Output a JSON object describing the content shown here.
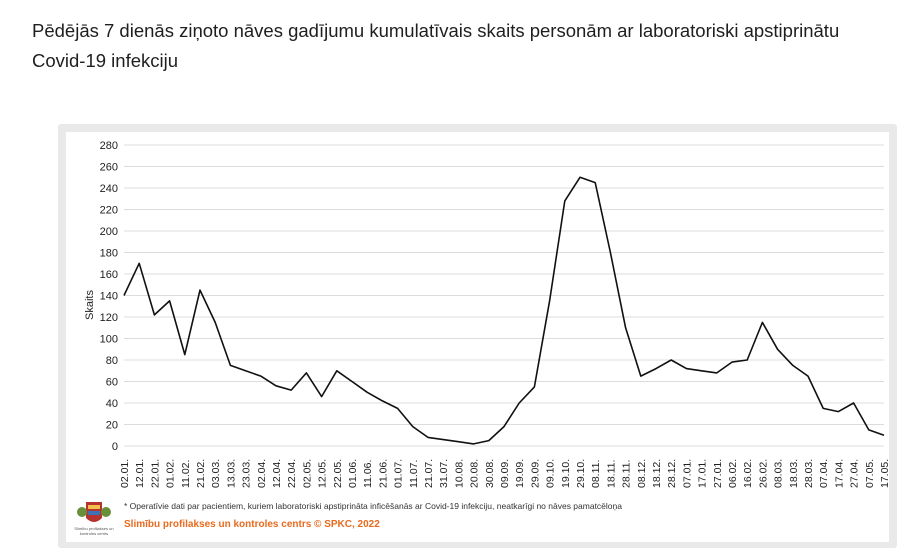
{
  "title": "Pēdējās 7 dienās ziņoto nāves gadījumu kumulatīvais skaits personām ar laboratoriski apstiprinātu Covid-19 infekciju",
  "footnote": "* Operatīvie dati par pacientiem, kuriem laboratoriski apstiprināta inficēšanās ar Covid-19 infekciju, neatkarīgi no nāves pamatcēloņa",
  "organization": "Slimību profilakses un kontroles centrs © SPKC, 2022",
  "logo_text": "Slimību profilakses un kontroles centrs",
  "colors": {
    "line": "#111111",
    "grid": "#dcdcdc",
    "accent": "#e86a1e",
    "frame": "#e9e9e9"
  },
  "chart_data": {
    "type": "line",
    "ylabel": "Skaits",
    "xlabel": "",
    "ylim": [
      0,
      280
    ],
    "yticks": [
      0,
      20,
      40,
      60,
      80,
      100,
      120,
      140,
      160,
      180,
      200,
      220,
      240,
      260,
      280
    ],
    "grid": true,
    "categories": [
      "02.01.",
      "12.01.",
      "22.01.",
      "01.02.",
      "11.02.",
      "21.02.",
      "03.03.",
      "13.03.",
      "23.03.",
      "02.04.",
      "12.04.",
      "22.04.",
      "02.05.",
      "12.05.",
      "22.05.",
      "01.06.",
      "11.06.",
      "21.06.",
      "01.07.",
      "11.07.",
      "21.07.",
      "31.07.",
      "10.08.",
      "20.08.",
      "30.08.",
      "09.09.",
      "19.09.",
      "29.09.",
      "09.10.",
      "19.10.",
      "29.10.",
      "08.11.",
      "18.11.",
      "28.11.",
      "08.12.",
      "18.12.",
      "28.12.",
      "07.01.",
      "17.01.",
      "27.01.",
      "06.02.",
      "16.02.",
      "26.02.",
      "08.03.",
      "18.03.",
      "28.03.",
      "07.04.",
      "17.04.",
      "27.04.",
      "07.05.",
      "17.05."
    ],
    "series": [
      {
        "values": [
          140,
          170,
          122,
          135,
          85,
          145,
          115,
          75,
          70,
          65,
          56,
          52,
          68,
          46,
          70,
          60,
          50,
          42,
          35,
          18,
          8,
          6,
          4,
          2,
          5,
          18,
          40,
          55,
          135,
          228,
          250,
          245,
          180,
          110,
          65,
          72,
          80,
          72,
          70,
          68,
          78,
          80,
          115,
          90,
          75,
          65,
          35,
          32,
          40,
          15,
          10
        ]
      }
    ]
  }
}
